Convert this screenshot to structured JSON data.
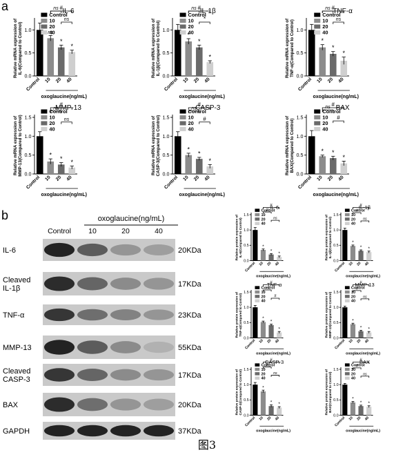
{
  "figure": {
    "panel_a_label": "a",
    "panel_b_label": "b",
    "caption": "图3"
  },
  "colors": {
    "control": "#000000",
    "c10": "#8c8c8c",
    "c20": "#6a6a6a",
    "c40": "#cfcfcf"
  },
  "qpcr": {
    "legend": [
      "Control",
      "10",
      "20",
      "40"
    ],
    "xlabel": "oxoglaucine(ng/mL)"
  },
  "western": {
    "header": "oxoglaucine(ng/mL)",
    "lanes": [
      "Control",
      "10",
      "20",
      "40"
    ],
    "rows": [
      {
        "label": "IL-6",
        "kda": "20KDa",
        "intensity": [
          0.95,
          0.65,
          0.35,
          0.3
        ]
      },
      {
        "label": "Cleaved IL-1β",
        "kda": "17KDa",
        "intensity": [
          0.9,
          0.6,
          0.4,
          0.35
        ]
      },
      {
        "label": "TNF-α",
        "kda": "23KDa",
        "intensity": [
          0.85,
          0.55,
          0.45,
          0.35
        ]
      },
      {
        "label": "MMP-13",
        "kda": "55KDa",
        "intensity": [
          0.95,
          0.65,
          0.4,
          0.2
        ]
      },
      {
        "label": "Cleaved CASP-3",
        "kda": "17KDa",
        "intensity": [
          0.85,
          0.6,
          0.4,
          0.35
        ]
      },
      {
        "label": "BAX",
        "kda": "20KDa",
        "intensity": [
          0.9,
          0.55,
          0.35,
          0.3
        ]
      },
      {
        "label": "GAPDH",
        "kda": "37KDa",
        "intensity": [
          0.95,
          0.95,
          0.95,
          0.95
        ]
      }
    ],
    "legend": [
      "Control",
      "10",
      "20",
      "40"
    ],
    "xlabel": "oxoglaucine(ng/mL)"
  },
  "chart_data": [
    {
      "id": "qpcr_il6",
      "type": "bar",
      "title": "IL-6",
      "ylabel": "Relative mRNA expression of IL-6(Compared to Control)",
      "xlabel": "oxoglaucine(ng/mL)",
      "categories": [
        "Control",
        "10",
        "20",
        "40"
      ],
      "values": [
        1.0,
        0.82,
        0.62,
        0.52
      ],
      "errors": [
        0.15,
        0.06,
        0.05,
        0.04
      ],
      "ylim": [
        0,
        1.2
      ],
      "yticks": [
        0,
        0.5,
        1.0
      ],
      "marks": [
        "",
        "ns",
        "*",
        "*"
      ],
      "brackets": [
        {
          "from": 1,
          "to": 2,
          "text": "ns"
        },
        {
          "from": 1,
          "to": 3,
          "text": "#"
        },
        {
          "from": 2,
          "to": 3,
          "text": "ns"
        }
      ]
    },
    {
      "id": "qpcr_il1b",
      "type": "bar",
      "title": "IL-1β",
      "ylabel": "Relative mRNA expression of IL-1β(Compared to Control)",
      "xlabel": "oxoglaucine(ng/mL)",
      "categories": [
        "Control",
        "10",
        "20",
        "40"
      ],
      "values": [
        1.0,
        0.75,
        0.62,
        0.3
      ],
      "errors": [
        0.12,
        0.06,
        0.05,
        0.03
      ],
      "ylim": [
        0,
        1.2
      ],
      "yticks": [
        0,
        0.5,
        1.0
      ],
      "marks": [
        "",
        "*",
        "*",
        "*"
      ],
      "brackets": [
        {
          "from": 1,
          "to": 2,
          "text": "ns"
        },
        {
          "from": 1,
          "to": 3,
          "text": "#"
        },
        {
          "from": 2,
          "to": 3,
          "text": "*"
        }
      ]
    },
    {
      "id": "qpcr_tnfa",
      "type": "bar",
      "title": "TNF-α",
      "ylabel": "Relative mRNA expression of TNF-α(Compared to Control)",
      "xlabel": "oxoglaucine(ng/mL)",
      "categories": [
        "Control",
        "10",
        "20",
        "40"
      ],
      "values": [
        1.0,
        0.62,
        0.48,
        0.33
      ],
      "errors": [
        0.12,
        0.06,
        0.05,
        0.08
      ],
      "ylim": [
        0,
        1.2
      ],
      "yticks": [
        0,
        0.5,
        1.0
      ],
      "marks": [
        "",
        "*",
        "*",
        "*"
      ],
      "brackets": [
        {
          "from": 1,
          "to": 2,
          "text": "ns"
        },
        {
          "from": 1,
          "to": 3,
          "text": "#"
        },
        {
          "from": 2,
          "to": 3,
          "text": "ns"
        }
      ]
    },
    {
      "id": "qpcr_mmp13",
      "type": "bar",
      "title": "MMP-13",
      "ylabel": "Relative mRNA expression of MMP-13(Compared to Control)",
      "xlabel": "oxoglaucine(ng/mL)",
      "categories": [
        "Control",
        "10",
        "20",
        "40"
      ],
      "values": [
        1.0,
        0.33,
        0.25,
        0.17
      ],
      "errors": [
        0.12,
        0.07,
        0.05,
        0.04
      ],
      "ylim": [
        0,
        1.5
      ],
      "yticks": [
        0,
        0.5,
        1.0,
        1.5
      ],
      "marks": [
        "",
        "*",
        "*",
        "*"
      ],
      "brackets": [
        {
          "from": 1,
          "to": 2,
          "text": "ns"
        },
        {
          "from": 1,
          "to": 3,
          "text": "#"
        },
        {
          "from": 2,
          "to": 3,
          "text": "ns"
        }
      ]
    },
    {
      "id": "qpcr_casp3",
      "type": "bar",
      "title": "CASP-3",
      "ylabel": "Relative mRNA expression of CASP-3(Compared to Control)",
      "xlabel": "oxoglaucine(ng/mL)",
      "categories": [
        "Control",
        "10",
        "20",
        "40"
      ],
      "values": [
        1.0,
        0.5,
        0.4,
        0.2
      ],
      "errors": [
        0.12,
        0.05,
        0.04,
        0.05
      ],
      "ylim": [
        0,
        1.5
      ],
      "yticks": [
        0,
        0.5,
        1.0,
        1.5
      ],
      "marks": [
        "",
        "*",
        "*",
        "*"
      ],
      "brackets": [
        {
          "from": 1,
          "to": 2,
          "text": "ns"
        },
        {
          "from": 1,
          "to": 3,
          "text": "#"
        },
        {
          "from": 2,
          "to": 3,
          "text": "#"
        }
      ]
    },
    {
      "id": "qpcr_bax",
      "type": "bar",
      "title": "BAX",
      "ylabel": "Relative mRNA expression of BAX(Compared to Control)",
      "xlabel": "oxoglaucine(ng/mL)",
      "categories": [
        "Control",
        "10",
        "20",
        "40"
      ],
      "values": [
        1.0,
        0.47,
        0.42,
        0.28
      ],
      "errors": [
        0.15,
        0.03,
        0.05,
        0.06
      ],
      "ylim": [
        0,
        1.5
      ],
      "yticks": [
        0,
        0.5,
        1.0,
        1.5
      ],
      "marks": [
        "",
        "*",
        "*",
        "*"
      ],
      "brackets": [
        {
          "from": 1,
          "to": 2,
          "text": "ns"
        },
        {
          "from": 1,
          "to": 3,
          "text": "#"
        },
        {
          "from": 2,
          "to": 3,
          "text": "#"
        }
      ]
    },
    {
      "id": "wb_il6",
      "type": "bar",
      "title": "IL-6",
      "ylabel": "Relative protein expression of IL-6(Compared to Control)",
      "xlabel": "oxoglaucine(ng/mL)",
      "categories": [
        "Control",
        "10",
        "20",
        "40"
      ],
      "values": [
        1.0,
        0.35,
        0.2,
        0.12
      ],
      "errors": [
        0.08,
        0.03,
        0.03,
        0.03
      ],
      "ylim": [
        0,
        1.5
      ],
      "yticks": [
        0,
        0.5,
        1.0,
        1.5
      ],
      "marks": [
        "",
        "*",
        "*",
        "*"
      ],
      "brackets": [
        {
          "from": 1,
          "to": 2,
          "text": "#"
        },
        {
          "from": 1,
          "to": 3,
          "text": "#"
        },
        {
          "from": 2,
          "to": 3,
          "text": "ns"
        }
      ]
    },
    {
      "id": "wb_il1b",
      "type": "bar",
      "title": "IL-1β",
      "ylabel": "Relative protein expression of IL-1β(Compared to Control)",
      "xlabel": "oxoglaucine(ng/mL)",
      "categories": [
        "Control",
        "10",
        "20",
        "40"
      ],
      "values": [
        1.0,
        0.48,
        0.32,
        0.28
      ],
      "errors": [
        0.06,
        0.03,
        0.03,
        0.03
      ],
      "ylim": [
        0,
        1.5
      ],
      "yticks": [
        0,
        0.5,
        1.0,
        1.5
      ],
      "marks": [
        "",
        "*",
        "*",
        "*"
      ],
      "brackets": [
        {
          "from": 1,
          "to": 2,
          "text": "#"
        },
        {
          "from": 1,
          "to": 3,
          "text": "#"
        },
        {
          "from": 2,
          "to": 3,
          "text": "ns"
        }
      ]
    },
    {
      "id": "wb_tnfa",
      "type": "bar",
      "title": "TNF-α",
      "ylabel": "Relative protein expression of TNF-α(Compared to Control)",
      "xlabel": "oxoglaucine(ng/mL)",
      "categories": [
        "Control",
        "10",
        "20",
        "40"
      ],
      "values": [
        1.0,
        0.52,
        0.42,
        0.18
      ],
      "errors": [
        0.06,
        0.03,
        0.03,
        0.03
      ],
      "ylim": [
        0,
        1.5
      ],
      "yticks": [
        0,
        0.5,
        1.0,
        1.5
      ],
      "marks": [
        "",
        "*",
        "*",
        "*"
      ],
      "brackets": [
        {
          "from": 1,
          "to": 2,
          "text": "ns"
        },
        {
          "from": 1,
          "to": 3,
          "text": "#"
        },
        {
          "from": 2,
          "to": 3,
          "text": "#"
        }
      ]
    },
    {
      "id": "wb_mmp13",
      "type": "bar",
      "title": "MMP-13",
      "ylabel": "Relative protein expression of MMP-13(Compared to Control)",
      "xlabel": "oxoglaucine(ng/mL)",
      "categories": [
        "Control",
        "10",
        "20",
        "40"
      ],
      "values": [
        1.0,
        0.45,
        0.22,
        0.18
      ],
      "errors": [
        0.04,
        0.03,
        0.03,
        0.03
      ],
      "ylim": [
        0,
        1.5
      ],
      "yticks": [
        0,
        0.5,
        1.0,
        1.5
      ],
      "marks": [
        "",
        "*",
        "*",
        "*"
      ],
      "brackets": [
        {
          "from": 1,
          "to": 2,
          "text": "#"
        },
        {
          "from": 1,
          "to": 3,
          "text": "#"
        },
        {
          "from": 2,
          "to": 3,
          "text": "ns"
        }
      ]
    },
    {
      "id": "wb_casp3",
      "type": "bar",
      "title": "CASP-3",
      "ylabel": "Relative protein expression of CASP-3(Compared to Control)",
      "xlabel": "oxoglaucine(ng/mL)",
      "categories": [
        "Control",
        "10",
        "20",
        "40"
      ],
      "values": [
        1.0,
        0.78,
        0.3,
        0.25
      ],
      "errors": [
        0.07,
        0.04,
        0.04,
        0.03
      ],
      "ylim": [
        0,
        1.5
      ],
      "yticks": [
        0,
        0.5,
        1.0,
        1.5
      ],
      "marks": [
        "",
        "*",
        "*",
        "*"
      ],
      "brackets": [
        {
          "from": 1,
          "to": 2,
          "text": "#"
        },
        {
          "from": 1,
          "to": 3,
          "text": "#"
        },
        {
          "from": 2,
          "to": 3,
          "text": "ns"
        }
      ]
    },
    {
      "id": "wb_bax",
      "type": "bar",
      "title": "BAX",
      "ylabel": "Relative protein expression of BAX(Compared to Control)",
      "xlabel": "oxoglaucine(ng/mL)",
      "categories": [
        "Control",
        "10",
        "20",
        "40"
      ],
      "values": [
        1.0,
        0.42,
        0.3,
        0.28
      ],
      "errors": [
        0.04,
        0.03,
        0.03,
        0.03
      ],
      "ylim": [
        0,
        1.5
      ],
      "yticks": [
        0,
        0.5,
        1.0,
        1.5
      ],
      "marks": [
        "",
        "*",
        "*",
        "*"
      ],
      "brackets": [
        {
          "from": 1,
          "to": 2,
          "text": "#"
        },
        {
          "from": 1,
          "to": 3,
          "text": "#"
        },
        {
          "from": 2,
          "to": 3,
          "text": "ns"
        }
      ]
    }
  ]
}
